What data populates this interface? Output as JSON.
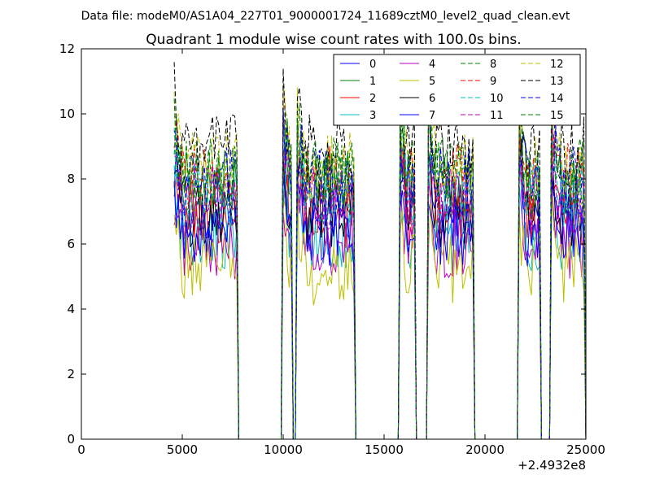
{
  "suptitle": "Data file: modeM0/AS1A04_227T01_9000001724_11689cztM0_level2_quad_clean.evt",
  "chart_data": {
    "type": "line",
    "title": "Quadrant 1 module wise count rates with 100.0s bins.",
    "xlabel": "",
    "ylabel": "",
    "x_offset_label": "+2.4932e8",
    "xlim": [
      0,
      25000
    ],
    "ylim": [
      0,
      12
    ],
    "xticks": [
      0,
      5000,
      10000,
      15000,
      20000,
      25000
    ],
    "yticks": [
      0,
      2,
      4,
      6,
      8,
      10,
      12
    ],
    "bin_size_s": 100,
    "legend": {
      "location": "upper right",
      "columns": 4
    },
    "segments": [
      [
        4600,
        7700
      ],
      [
        10000,
        10400
      ],
      [
        10700,
        13500
      ],
      [
        15800,
        16500
      ],
      [
        17200,
        19400
      ],
      [
        21700,
        22700
      ],
      [
        23300,
        24900
      ]
    ],
    "series": [
      {
        "name": "0",
        "color": "#0000ff",
        "dash": "solid",
        "mean": 7.2
      },
      {
        "name": "1",
        "color": "#008000",
        "dash": "solid",
        "mean": 7.8
      },
      {
        "name": "2",
        "color": "#ff0000",
        "dash": "solid",
        "mean": 6.9
      },
      {
        "name": "3",
        "color": "#00bfbf",
        "dash": "solid",
        "mean": 6.2
      },
      {
        "name": "4",
        "color": "#bf00bf",
        "dash": "solid",
        "mean": 6.0
      },
      {
        "name": "5",
        "color": "#bfbf00",
        "dash": "solid",
        "mean": 5.2
      },
      {
        "name": "6",
        "color": "#000000",
        "dash": "solid",
        "mean": 7.0
      },
      {
        "name": "7",
        "color": "#0000ff",
        "dash": "solid",
        "mean": 6.4
      },
      {
        "name": "8",
        "color": "#008000",
        "dash": "dashed",
        "mean": 8.2
      },
      {
        "name": "9",
        "color": "#ff0000",
        "dash": "dashed",
        "mean": 8.0
      },
      {
        "name": "10",
        "color": "#00bfbf",
        "dash": "dashed",
        "mean": 7.6
      },
      {
        "name": "11",
        "color": "#bf00bf",
        "dash": "dashed",
        "mean": 7.4
      },
      {
        "name": "12",
        "color": "#bfbf00",
        "dash": "dashed",
        "mean": 8.4
      },
      {
        "name": "13",
        "color": "#000000",
        "dash": "dashed",
        "mean": 8.9
      },
      {
        "name": "14",
        "color": "#0000ff",
        "dash": "dashed",
        "mean": 7.9
      },
      {
        "name": "15",
        "color": "#008000",
        "dash": "dashed",
        "mean": 8.1
      }
    ]
  }
}
